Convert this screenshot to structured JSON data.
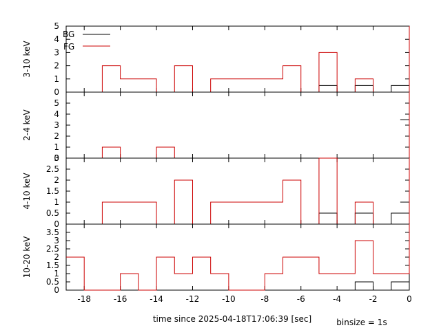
{
  "colors": {
    "bg": "#000000",
    "fg": "#cc0000"
  },
  "x_label": "time since 2025-04-18T17:06:39 [sec]",
  "binsize_label": "binsize = 1s",
  "legend": {
    "bg_label": "BG",
    "fg_label": "FG",
    "placement": "top-left"
  },
  "chart_data": [
    {
      "type": "line",
      "step": true,
      "panel_label": "3-10 keV",
      "xlim": [
        -19,
        0
      ],
      "ylim": [
        0,
        5
      ],
      "y_ticks": [
        0,
        1,
        2,
        3,
        4,
        5
      ],
      "x_ticks": [
        -18,
        -16,
        -14,
        -12,
        -10,
        -8,
        -6,
        -4,
        -2,
        0
      ],
      "bin_edges": [
        -19,
        -18,
        -17,
        -16,
        -15,
        -14,
        -13,
        -12,
        -11,
        -10,
        -9,
        -8,
        -7,
        -6,
        -5,
        -4,
        -3,
        -2,
        -1,
        0
      ],
      "series": [
        {
          "name": "BG",
          "values": [
            0,
            0,
            0,
            0,
            0,
            0,
            0,
            0,
            0,
            0,
            0,
            0,
            0,
            0,
            0.5,
            0,
            0.5,
            0,
            0.5
          ]
        },
        {
          "name": "FG",
          "values": [
            0,
            0,
            2,
            1,
            1,
            0,
            2,
            0,
            1,
            1,
            1,
            1,
            2,
            0,
            3,
            0,
            1,
            0,
            0
          ],
          "final_spike": 5
        }
      ]
    },
    {
      "type": "line",
      "step": true,
      "panel_label": "2-4 keV",
      "xlim": [
        -19,
        0
      ],
      "ylim": [
        0,
        6
      ],
      "y_ticks": [
        0,
        1,
        2,
        3,
        4,
        5
      ],
      "x_ticks": [
        -18,
        -16,
        -14,
        -12,
        -10,
        -8,
        -6,
        -4,
        -2,
        0
      ],
      "bin_edges": [
        -19,
        -18,
        -17,
        -16,
        -15,
        -14,
        -13,
        -12,
        -11,
        -10,
        -9,
        -8,
        -7,
        -6,
        -5,
        -4,
        -3,
        -2,
        -1,
        0
      ],
      "series": [
        {
          "name": "BG",
          "values": [
            0,
            0,
            0,
            0,
            0,
            0,
            0,
            0,
            0,
            0,
            0,
            0,
            0,
            0,
            0,
            0,
            0,
            0,
            0
          ],
          "final_level": 3.5
        },
        {
          "name": "FG",
          "values": [
            0,
            0,
            1,
            0,
            0,
            1,
            0,
            0,
            0,
            0,
            0,
            0,
            0,
            0,
            0,
            0,
            0,
            0,
            0
          ],
          "final_spike": 6
        }
      ]
    },
    {
      "type": "line",
      "step": true,
      "panel_label": "4-10 keV",
      "xlim": [
        -19,
        0
      ],
      "ylim": [
        0,
        3
      ],
      "y_ticks": [
        0,
        0.5,
        1,
        1.5,
        2,
        2.5,
        3
      ],
      "x_ticks": [
        -18,
        -16,
        -14,
        -12,
        -10,
        -8,
        -6,
        -4,
        -2,
        0
      ],
      "bin_edges": [
        -19,
        -18,
        -17,
        -16,
        -15,
        -14,
        -13,
        -12,
        -11,
        -10,
        -9,
        -8,
        -7,
        -6,
        -5,
        -4,
        -3,
        -2,
        -1,
        0
      ],
      "series": [
        {
          "name": "BG",
          "values": [
            0,
            0,
            0,
            0,
            0,
            0,
            0,
            0,
            0,
            0,
            0,
            0,
            0,
            0,
            0.5,
            0,
            0.5,
            0,
            0.5
          ],
          "final_level": 1
        },
        {
          "name": "FG",
          "values": [
            0,
            0,
            1,
            1,
            1,
            0,
            2,
            0,
            1,
            1,
            1,
            1,
            2,
            0,
            3,
            0,
            1,
            0,
            0
          ],
          "final_spike": 3
        }
      ]
    },
    {
      "type": "line",
      "step": true,
      "panel_label": "10-20 keV",
      "xlim": [
        -19,
        0
      ],
      "ylim": [
        0,
        4
      ],
      "y_ticks": [
        0,
        0.5,
        1,
        1.5,
        2,
        2.5,
        3,
        3.5
      ],
      "x_ticks": [
        -18,
        -16,
        -14,
        -12,
        -10,
        -8,
        -6,
        -4,
        -2,
        0
      ],
      "bin_edges": [
        -19,
        -18,
        -17,
        -16,
        -15,
        -14,
        -13,
        -12,
        -11,
        -10,
        -9,
        -8,
        -7,
        -6,
        -5,
        -4,
        -3,
        -2,
        -1,
        0
      ],
      "series": [
        {
          "name": "BG",
          "values": [
            0,
            0,
            0,
            0,
            0,
            0,
            0,
            0,
            0,
            0,
            0,
            0,
            0,
            0,
            0,
            0,
            0.5,
            0,
            0.5
          ]
        },
        {
          "name": "FG",
          "values": [
            2,
            0,
            0,
            1,
            0,
            2,
            1,
            2,
            1,
            0,
            0,
            1,
            2,
            2,
            1,
            1,
            3,
            1,
            1
          ],
          "final_spike": 4
        }
      ]
    }
  ]
}
